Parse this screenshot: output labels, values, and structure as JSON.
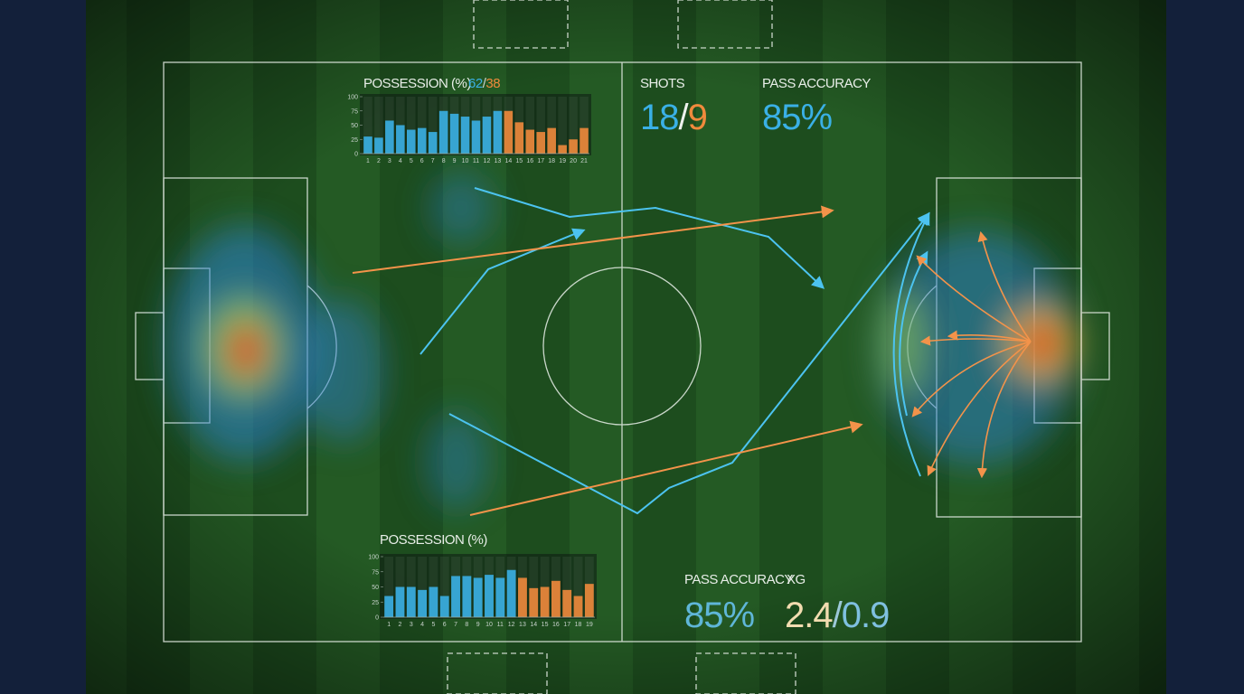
{
  "top_chart": {
    "type": "bar",
    "title": "POSSESSION (%)",
    "home_share": 62,
    "share_separator": "/",
    "away_share": 38,
    "categories": [
      "1",
      "2",
      "3",
      "4",
      "5",
      "6",
      "7",
      "8",
      "9",
      "10",
      "11",
      "12",
      "13",
      "14",
      "15",
      "16",
      "17",
      "18",
      "19",
      "20",
      "21"
    ],
    "values": [
      30,
      28,
      58,
      50,
      42,
      45,
      38,
      75,
      70,
      65,
      58,
      65,
      75,
      75,
      55,
      42,
      38,
      45,
      15,
      25,
      45
    ],
    "colors": [
      "#3ab0e6",
      "#3ab0e6",
      "#3ab0e6",
      "#3ab0e6",
      "#3ab0e6",
      "#3ab0e6",
      "#3ab0e6",
      "#3ab0e6",
      "#3ab0e6",
      "#3ab0e6",
      "#3ab0e6",
      "#3ab0e6",
      "#3ab0e6",
      "#f08a3c",
      "#f08a3c",
      "#f08a3c",
      "#f08a3c",
      "#f08a3c",
      "#f08a3c",
      "#f08a3c",
      "#f08a3c"
    ],
    "ylim": [
      0,
      100
    ],
    "yticks": [
      0,
      25,
      50,
      75,
      100
    ]
  },
  "bottom_chart": {
    "type": "bar",
    "title": "POSSESSION (%)",
    "categories": [
      "1",
      "2",
      "3",
      "4",
      "5",
      "6",
      "7",
      "8",
      "9",
      "10",
      "11",
      "12",
      "13",
      "14",
      "15",
      "16",
      "17",
      "18",
      "19"
    ],
    "values": [
      35,
      50,
      50,
      45,
      50,
      35,
      68,
      68,
      65,
      70,
      65,
      78,
      65,
      48,
      50,
      60,
      45,
      35,
      55
    ],
    "colors": [
      "#3ab0e6",
      "#3ab0e6",
      "#3ab0e6",
      "#3ab0e6",
      "#3ab0e6",
      "#3ab0e6",
      "#3ab0e6",
      "#3ab0e6",
      "#3ab0e6",
      "#3ab0e6",
      "#3ab0e6",
      "#3ab0e6",
      "#f08a3c",
      "#f08a3c",
      "#f08a3c",
      "#f08a3c",
      "#f08a3c",
      "#f08a3c",
      "#f08a3c"
    ],
    "ylim": [
      0,
      100
    ],
    "yticks": [
      0,
      25,
      50,
      75,
      100
    ]
  },
  "stats": {
    "shots": {
      "label": "SHOTS",
      "home": 18,
      "separator": "/",
      "away": 9
    },
    "pass_accuracy_top": {
      "label": "PASS ACCURACY",
      "value": 85,
      "value_label": "85%"
    },
    "pass_accuracy_bottom": {
      "label": "PASS ACCURACY",
      "value": 85,
      "value_label": "85%"
    },
    "xg": {
      "label": "XG",
      "home": 2.4,
      "separator": "/",
      "away": 0.9
    }
  }
}
